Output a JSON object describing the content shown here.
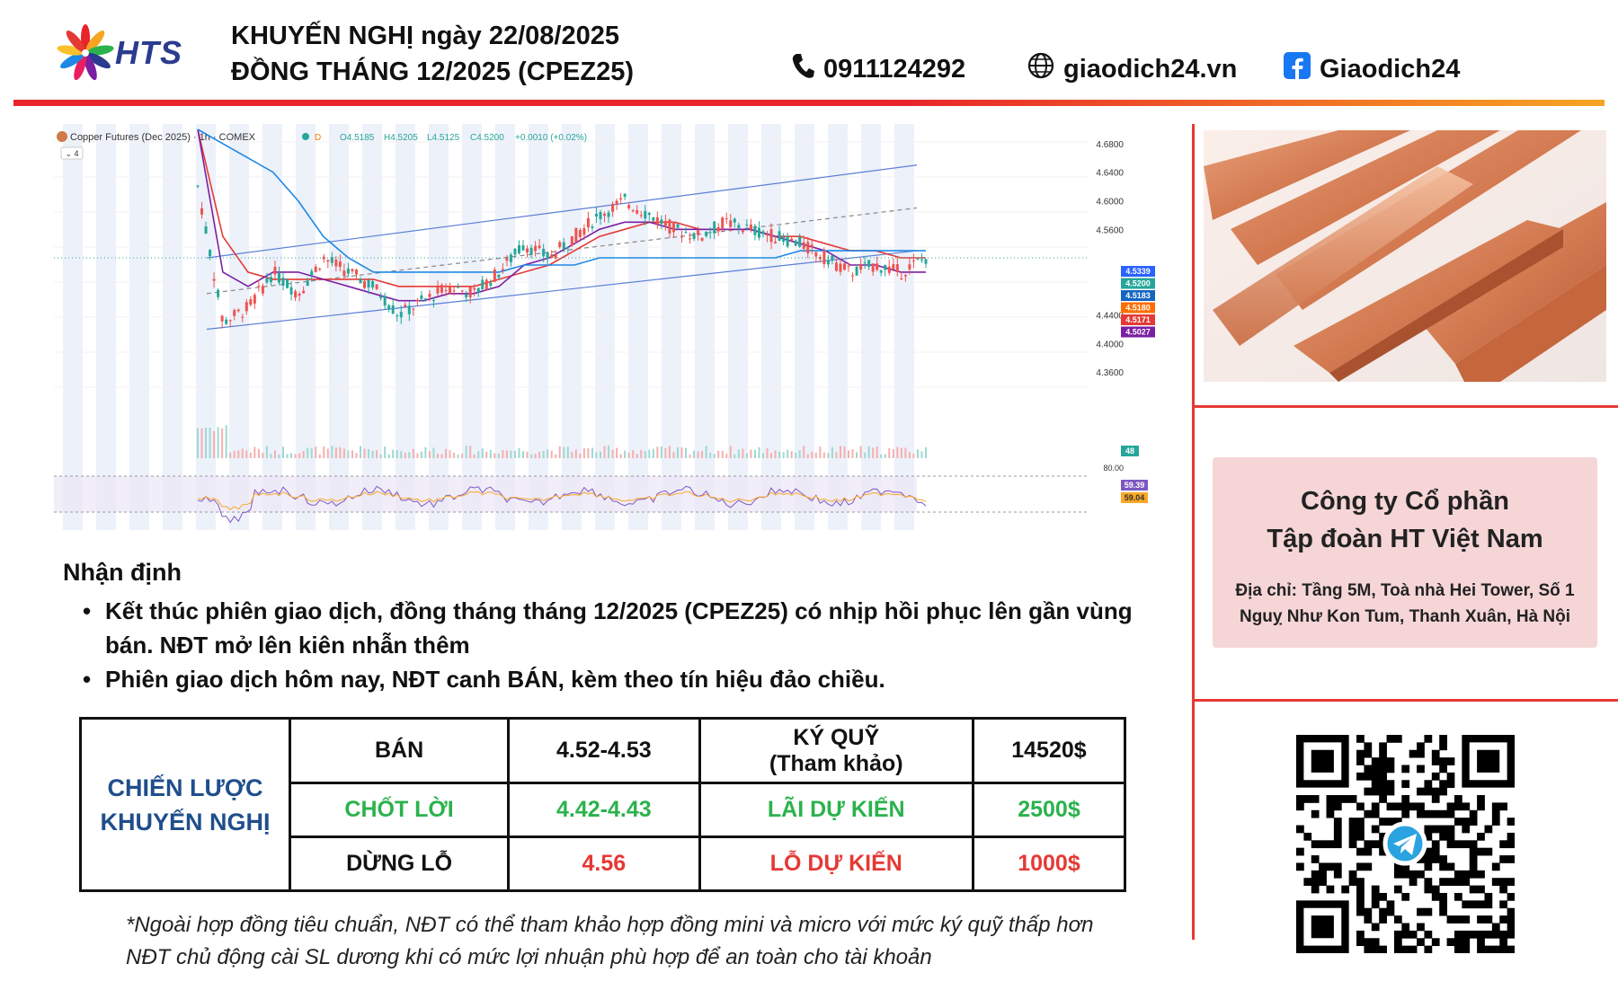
{
  "header": {
    "logo_text": "HTS",
    "title_line1": "KHUYẾN NGHỊ ngày 22/08/2025",
    "title_line2": "ĐỒNG THÁNG 12/2025 (CPEZ25)",
    "phone": "0911124292",
    "website": "giaodich24.vn",
    "facebook": "Giaodich24"
  },
  "colors": {
    "accent_red": "#e8232a",
    "accent_orange": "#f6a523",
    "strategy_blue": "#1f4e8c",
    "green": "#2bb24c",
    "red": "#e53935",
    "company_bg": "#f6d5d7"
  },
  "chart_data": {
    "type": "line",
    "title": "Copper Futures (Dec 2025) · 1h · COMEX",
    "indicator_count": "4",
    "ohlc": {
      "open": "O4.5185",
      "high": "H4.5205",
      "low": "L4.5125",
      "close": "C4.5200",
      "change": "+0.0010 (+0.02%)"
    },
    "y_ticks": [
      "4.6800",
      "4.6400",
      "4.6000",
      "4.5600",
      "4.4400",
      "4.4000",
      "4.3600"
    ],
    "ylim": [
      4.33,
      4.695
    ],
    "price_tags": [
      {
        "value": "4.5339",
        "color": "#2962ff"
      },
      {
        "value": "4.5200",
        "color": "#26a69a"
      },
      {
        "value": "4.5183",
        "color": "#1565c0"
      },
      {
        "value": "4.5180",
        "color": "#ff6d00"
      },
      {
        "value": "4.5171",
        "color": "#e53935"
      },
      {
        "value": "4.5027",
        "color": "#7b1fa2"
      }
    ],
    "volume_tag": "48",
    "rsi_level": "80.00",
    "rsi_tags": [
      {
        "value": "59.39",
        "color": "#7e57c2"
      },
      {
        "value": "59.04",
        "color": "#f9a825"
      }
    ],
    "channel": {
      "upper": [
        [
          0.0,
          4.52
        ],
        [
          1.0,
          4.65
        ]
      ],
      "middle": [
        [
          0.0,
          4.47
        ],
        [
          1.0,
          4.59
        ]
      ],
      "lower": [
        [
          0.0,
          4.42
        ],
        [
          1.0,
          4.53
        ]
      ]
    },
    "price_series": [
      4.62,
      4.43,
      4.45,
      4.5,
      4.47,
      4.52,
      4.5,
      4.48,
      4.44,
      4.46,
      4.48,
      4.47,
      4.5,
      4.54,
      4.52,
      4.55,
      4.58,
      4.6,
      4.58,
      4.56,
      4.55,
      4.57,
      4.56,
      4.55,
      4.54,
      4.52,
      4.5,
      4.51,
      4.5,
      4.52
    ],
    "ma_series": [
      {
        "color": "#e53935",
        "values": [
          4.7,
          4.55,
          4.5,
          4.49,
          4.49,
          4.49,
          4.49,
          4.49,
          4.48,
          4.48,
          4.48,
          4.48,
          4.49,
          4.5,
          4.51,
          4.53,
          4.55,
          4.56,
          4.57,
          4.57,
          4.56,
          4.56,
          4.56,
          4.55,
          4.55,
          4.54,
          4.53,
          4.53,
          4.52,
          4.52
        ]
      },
      {
        "color": "#7b1fa2",
        "values": [
          4.7,
          4.5,
          4.48,
          4.5,
          4.5,
          4.49,
          4.48,
          4.47,
          4.46,
          4.46,
          4.47,
          4.47,
          4.48,
          4.51,
          4.52,
          4.54,
          4.56,
          4.57,
          4.57,
          4.56,
          4.56,
          4.56,
          4.56,
          4.55,
          4.54,
          4.53,
          4.51,
          4.51,
          4.5,
          4.5
        ]
      },
      {
        "color": "#1e88e5",
        "values": [
          4.7,
          4.68,
          4.66,
          4.64,
          4.6,
          4.55,
          4.52,
          4.5,
          4.5,
          4.5,
          4.5,
          4.5,
          4.5,
          4.51,
          4.51,
          4.51,
          4.52,
          4.52,
          4.52,
          4.52,
          4.52,
          4.52,
          4.52,
          4.52,
          4.53,
          4.53,
          4.53,
          4.53,
          4.53,
          4.53
        ]
      }
    ]
  },
  "right": {
    "company_line1": "Công ty Cổ phần",
    "company_line2": "Tập đoàn HT Việt Nam",
    "address_line1": "Địa chỉ: Tầng 5M, Toà nhà Hei Tower, Số 1",
    "address_line2": "Nguỵ Như Kon Tum, Thanh Xuân, Hà Nội"
  },
  "analysis": {
    "heading": "Nhận định",
    "bullet1_line1": "Kết thúc phiên giao dịch, đồng tháng tháng 12/2025 (CPEZ25) có nhịp hồi phục lên gần vùng",
    "bullet1_line2": "bán. NĐT mở lên kiên nhẫn thêm",
    "bullet2": "Phiên giao dịch hôm nay, NĐT canh BÁN, kèm theo tín hiệu đảo chiều."
  },
  "strategy": {
    "label_line1": "CHIẾN LƯỢC",
    "label_line2": "KHUYẾN NGHỊ",
    "sell_label": "BÁN",
    "sell_range": "4.52-4.53",
    "margin_label_line1": "KÝ QUỸ",
    "margin_label_line2": "(Tham khảo)",
    "margin_value": "14520$",
    "tp_label": "CHỐT LỜI",
    "tp_range": "4.42-4.43",
    "profit_label": "LÃI DỰ KIẾN",
    "profit_value": "2500$",
    "sl_label": "DỪNG LỖ",
    "sl_value": "4.56",
    "loss_label": "LỖ DỰ KIẾN",
    "loss_value": "1000$"
  },
  "note": {
    "line1": "*Ngoài hợp đồng tiêu chuẩn, NĐT có thể tham khảo hợp đồng mini và micro với mức ký quỹ thấp hơn",
    "line2": "NĐT chủ động cài SL dương khi có mức lợi nhuận phù hợp để an toàn cho tài khoản"
  }
}
